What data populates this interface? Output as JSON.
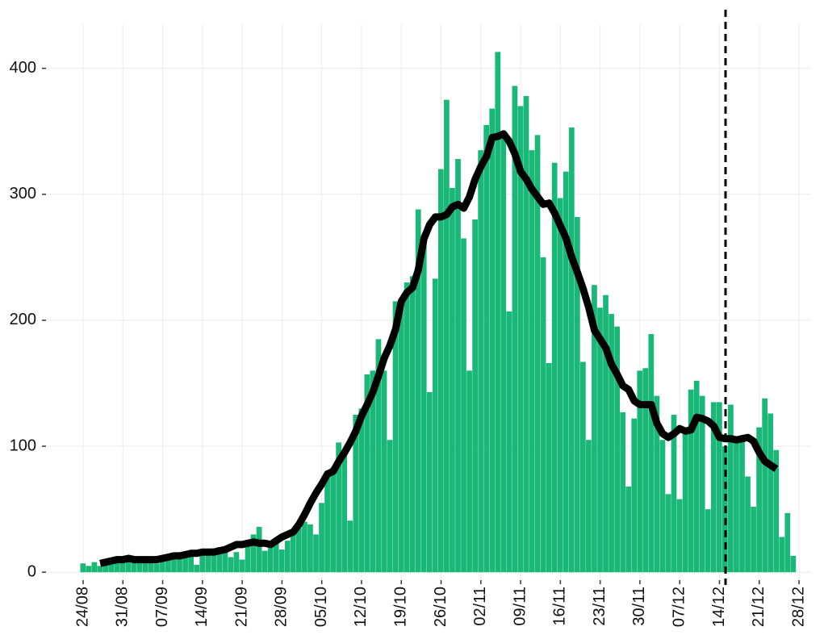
{
  "chart_data": {
    "type": "bar",
    "categories": [
      "24/08",
      null,
      null,
      null,
      null,
      null,
      null,
      "31/08",
      null,
      null,
      null,
      null,
      null,
      null,
      "07/09",
      null,
      null,
      null,
      null,
      null,
      null,
      "14/09",
      null,
      null,
      null,
      null,
      null,
      null,
      "21/09",
      null,
      null,
      null,
      null,
      null,
      null,
      "28/09",
      null,
      null,
      null,
      null,
      null,
      null,
      "05/10",
      null,
      null,
      null,
      null,
      null,
      null,
      "12/10",
      null,
      null,
      null,
      null,
      null,
      null,
      "19/10",
      null,
      null,
      null,
      null,
      null,
      null,
      "26/10",
      null,
      null,
      null,
      null,
      null,
      null,
      "02/11",
      null,
      null,
      null,
      null,
      null,
      null,
      "09/11",
      null,
      null,
      null,
      null,
      null,
      null,
      "16/11",
      null,
      null,
      null,
      null,
      null,
      null,
      "23/11",
      null,
      null,
      null,
      null,
      null,
      null,
      "30/11",
      null,
      null,
      null,
      null,
      null,
      null,
      "07/12",
      null,
      null,
      null,
      null,
      null,
      null,
      "14/12",
      null,
      null,
      null,
      null,
      null,
      null,
      "21/12",
      null,
      null,
      null,
      null,
      null,
      null,
      "28/12"
    ],
    "series": [
      {
        "name": null,
        "kind": "bar",
        "color": "#19b878",
        "values": [
          7,
          5,
          8,
          5,
          6,
          7,
          9,
          10,
          8,
          12,
          9,
          11,
          10,
          7,
          10,
          12,
          14,
          11,
          16,
          17,
          6,
          14,
          17,
          19,
          20,
          18,
          12,
          16,
          10,
          22,
          30,
          36,
          17,
          22,
          25,
          18,
          25,
          30,
          35,
          40,
          38,
          30,
          55,
          80,
          83,
          103,
          95,
          41,
          125,
          130,
          157,
          160,
          185,
          160,
          105,
          215,
          217,
          230,
          235,
          288,
          265,
          143,
          233,
          320,
          375,
          305,
          328,
          265,
          160,
          280,
          335,
          355,
          368,
          413,
          345,
          207,
          386,
          370,
          378,
          335,
          347,
          250,
          166,
          325,
          297,
          318,
          353,
          282,
          167,
          105,
          228,
          210,
          220,
          205,
          195,
          127,
          68,
          122,
          160,
          162,
          189,
          140,
          105,
          62,
          125,
          58,
          115,
          145,
          152,
          140,
          50,
          135,
          135,
          100,
          133,
          105,
          105,
          76,
          52,
          115,
          138,
          126,
          97,
          28,
          47,
          13,
          null
        ]
      },
      {
        "name": null,
        "kind": "line",
        "color": "#000000",
        "values": [
          null,
          null,
          null,
          7,
          8,
          9,
          10,
          10,
          11,
          10,
          10,
          10,
          10,
          10,
          11,
          12,
          13,
          13,
          14,
          15,
          15,
          16,
          16,
          16,
          17,
          18,
          20,
          22,
          22,
          23,
          24,
          23,
          23,
          22,
          25,
          28,
          30,
          32,
          38,
          46,
          55,
          63,
          70,
          78,
          80,
          88,
          95,
          103,
          112,
          124,
          133,
          143,
          156,
          170,
          180,
          193,
          215,
          222,
          226,
          240,
          265,
          276,
          282,
          282,
          284,
          290,
          292,
          289,
          298,
          312,
          322,
          330,
          345,
          346,
          348,
          342,
          332,
          318,
          312,
          304,
          298,
          292,
          293,
          285,
          275,
          265,
          250,
          238,
          225,
          210,
          192,
          185,
          178,
          165,
          157,
          148,
          145,
          136,
          133,
          133,
          133,
          118,
          110,
          107,
          110,
          114,
          112,
          113,
          123,
          122,
          120,
          116,
          107,
          106,
          106,
          105,
          106,
          107,
          104,
          95,
          88,
          85,
          82,
          null,
          null,
          null,
          null
        ]
      }
    ],
    "ylim": [
      -5,
      435
    ],
    "yticks": [
      0,
      100,
      200,
      300,
      400
    ],
    "grid": true
  }
}
